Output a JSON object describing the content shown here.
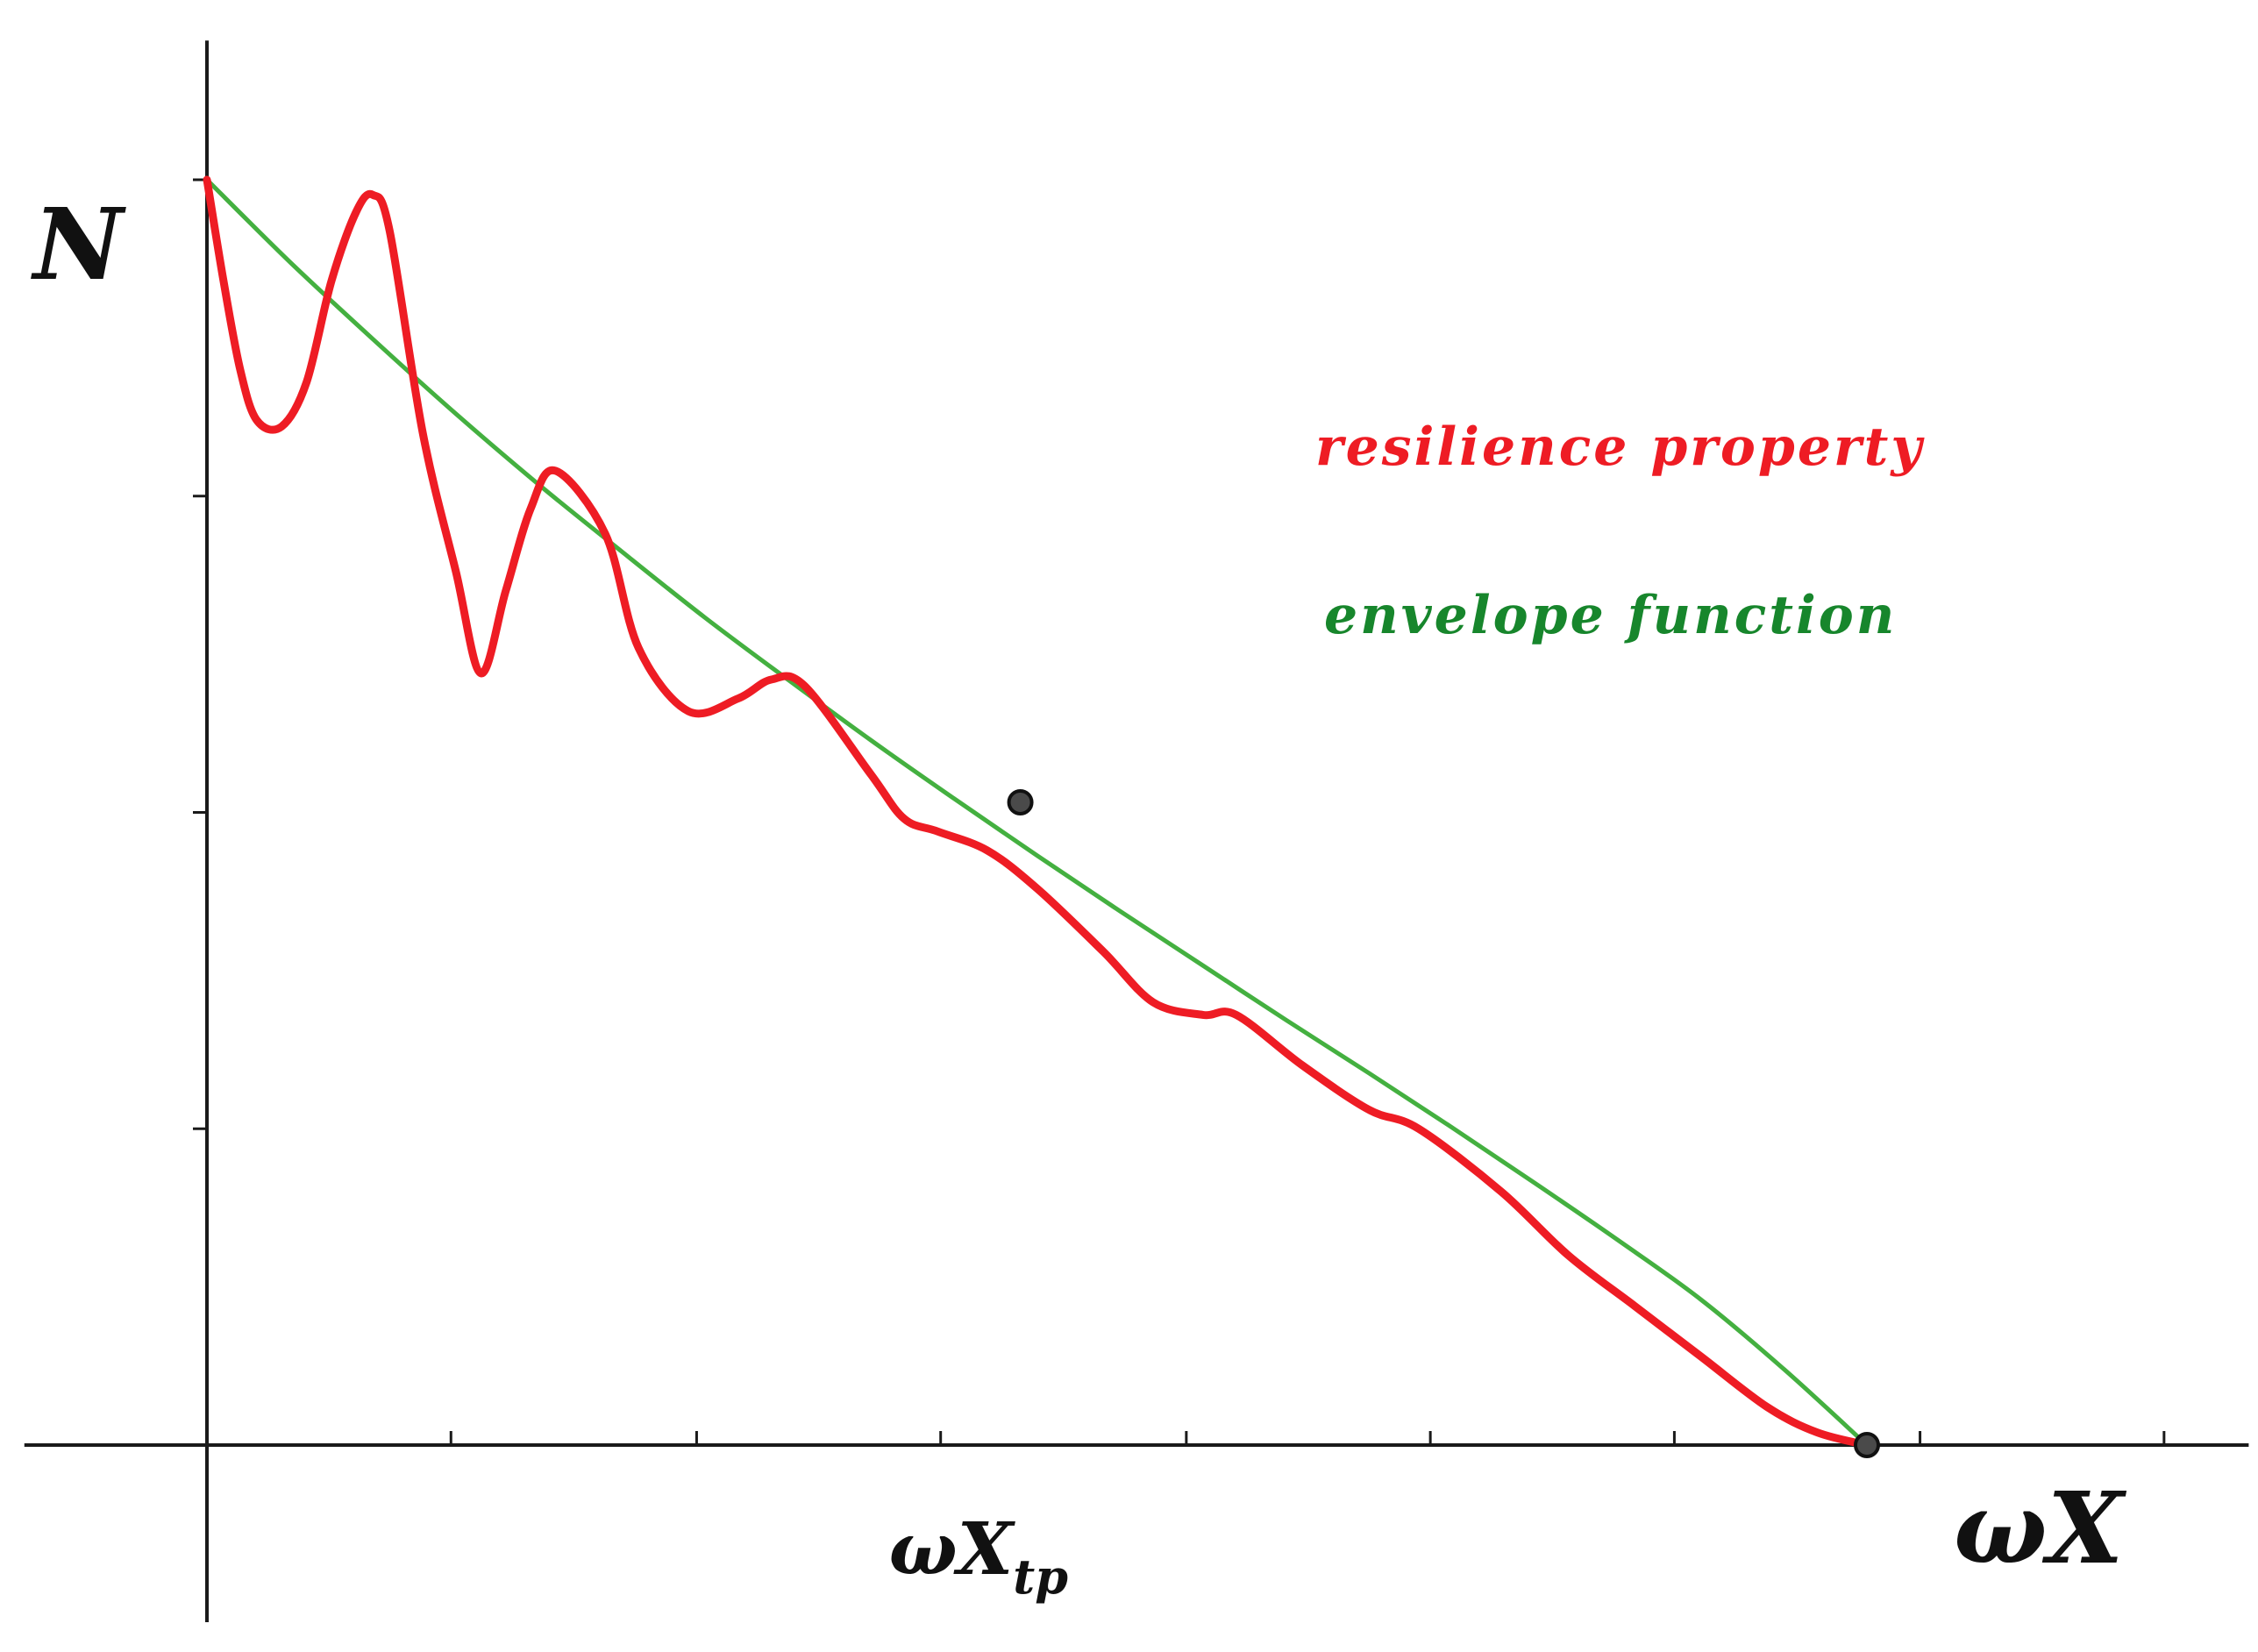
{
  "chart_data": {
    "type": "line",
    "title": "",
    "xlabel": "ωX",
    "ylabel": "N",
    "x_annotation": {
      "base": "ωX",
      "subscript": "tp",
      "x": 0.49
    },
    "xlim": [
      -0.11,
      1.23
    ],
    "ylim": [
      -0.14,
      1.11
    ],
    "x_ticks": [
      0.147,
      0.295,
      0.442,
      0.59,
      0.737,
      0.884,
      1.032,
      1.179
    ],
    "y_ticks": [
      0.25,
      0.5,
      0.75,
      1.0
    ],
    "grid": false,
    "legend": {
      "placement": "upper-right",
      "entries": [
        {
          "label": "resilience property",
          "color": "#ee1c24"
        },
        {
          "label": "envelope function",
          "color": "#17862c"
        }
      ]
    },
    "series": [
      {
        "name": "envelope function",
        "color": "#44b040",
        "x": [
          0,
          0.05,
          0.1,
          0.15,
          0.2,
          0.25,
          0.3,
          0.35,
          0.4,
          0.45,
          0.5,
          0.55,
          0.6,
          0.65,
          0.7,
          0.75,
          0.8,
          0.85,
          0.9,
          0.95,
          1.0
        ],
        "y": [
          1.0,
          0.935,
          0.874,
          0.815,
          0.759,
          0.706,
          0.654,
          0.605,
          0.557,
          0.511,
          0.466,
          0.422,
          0.379,
          0.336,
          0.294,
          0.251,
          0.207,
          0.162,
          0.115,
          0.06,
          0.0
        ]
      },
      {
        "name": "resilience property",
        "color": "#ee1c24",
        "x": [
          0,
          0.01,
          0.02,
          0.03,
          0.045,
          0.06,
          0.075,
          0.09,
          0.1,
          0.11,
          0.13,
          0.15,
          0.165,
          0.18,
          0.195,
          0.21,
          0.24,
          0.26,
          0.29,
          0.32,
          0.34,
          0.36,
          0.4,
          0.42,
          0.44,
          0.47,
          0.5,
          0.54,
          0.57,
          0.6,
          0.62,
          0.66,
          0.7,
          0.73,
          0.78,
          0.82,
          0.86,
          0.9,
          0.94,
          0.97,
          1.0
        ],
        "y": [
          1.0,
          0.92,
          0.85,
          0.81,
          0.805,
          0.84,
          0.92,
          0.975,
          0.988,
          0.96,
          0.8,
          0.69,
          0.61,
          0.675,
          0.74,
          0.77,
          0.72,
          0.63,
          0.58,
          0.59,
          0.605,
          0.6,
          0.53,
          0.495,
          0.485,
          0.47,
          0.44,
          0.39,
          0.35,
          0.34,
          0.34,
          0.3,
          0.265,
          0.25,
          0.2,
          0.15,
          0.11,
          0.07,
          0.03,
          0.01,
          0.0
        ]
      }
    ],
    "markers": [
      {
        "x": 0.49,
        "y": 0.508
      },
      {
        "x": 1.0,
        "y": 0.0
      }
    ]
  }
}
